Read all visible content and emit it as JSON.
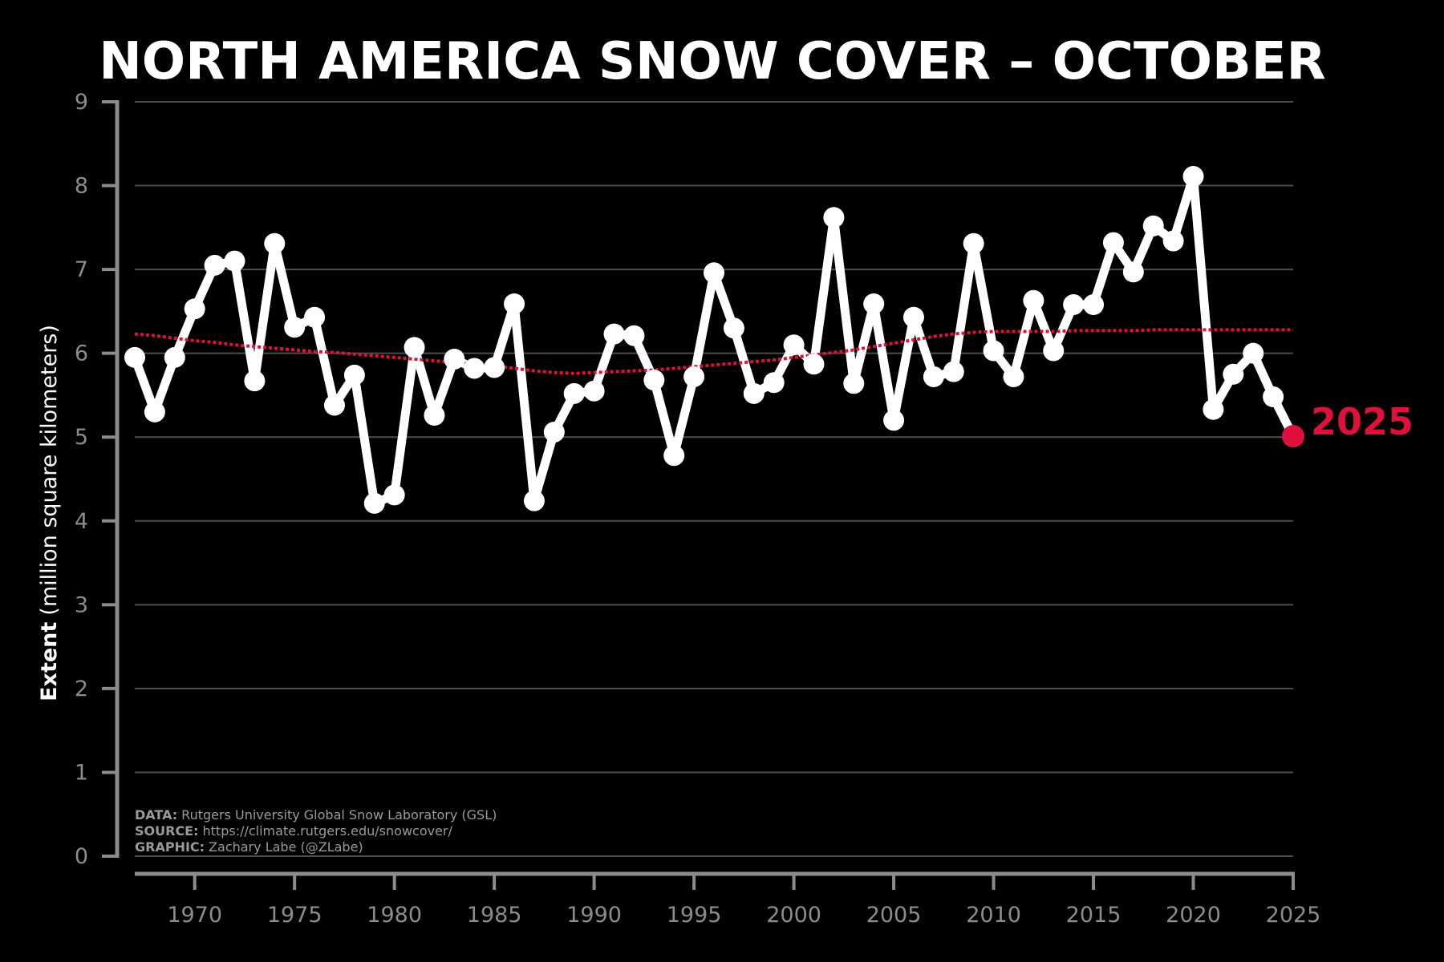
{
  "chart_data": {
    "type": "line",
    "title": "NORTH AMERICA SNOW COVER – OCTOBER",
    "ylabel_bold": "Extent",
    "ylabel_rest": "(million square kilometers)",
    "xlabel": "",
    "xlim": [
      1967,
      2025
    ],
    "ylim": [
      0,
      9
    ],
    "yticks": [
      0,
      1,
      2,
      3,
      4,
      5,
      6,
      7,
      8,
      9
    ],
    "xticks": [
      1970,
      1975,
      1980,
      1985,
      1990,
      1995,
      2000,
      2005,
      2010,
      2015,
      2020,
      2025
    ],
    "grid": true,
    "x": [
      1967,
      1968,
      1969,
      1970,
      1971,
      1972,
      1973,
      1974,
      1975,
      1976,
      1977,
      1978,
      1979,
      1980,
      1981,
      1982,
      1983,
      1984,
      1985,
      1986,
      1987,
      1988,
      1989,
      1990,
      1991,
      1992,
      1993,
      1994,
      1995,
      1996,
      1997,
      1998,
      1999,
      2000,
      2001,
      2002,
      2003,
      2004,
      2005,
      2006,
      2007,
      2008,
      2009,
      2010,
      2011,
      2012,
      2013,
      2014,
      2015,
      2016,
      2017,
      2018,
      2019,
      2020,
      2021,
      2022,
      2023,
      2024,
      2025
    ],
    "series": [
      {
        "values": [
          5.95,
          5.3,
          5.95,
          6.53,
          7.05,
          7.1,
          5.67,
          7.31,
          6.31,
          6.43,
          5.38,
          5.74,
          4.21,
          4.31,
          6.07,
          5.26,
          5.93,
          5.82,
          5.83,
          6.59,
          4.24,
          5.06,
          5.52,
          5.55,
          6.23,
          6.21,
          5.68,
          4.78,
          5.72,
          6.96,
          6.3,
          5.52,
          5.65,
          6.1,
          5.87,
          7.62,
          5.64,
          6.59,
          5.2,
          6.43,
          5.72,
          5.78,
          7.31,
          6.03,
          5.72,
          6.63,
          6.03,
          6.58,
          6.58,
          7.32,
          6.97,
          7.52,
          7.34,
          8.11,
          5.33,
          5.75,
          6.0,
          5.48,
          5.01
        ],
        "color": "#ffffff"
      },
      {
        "style": "dotted-trend",
        "values": [
          6.23,
          6.21,
          6.18,
          6.15,
          6.13,
          6.1,
          6.08,
          6.06,
          6.04,
          6.02,
          6.01,
          5.99,
          5.97,
          5.95,
          5.93,
          5.91,
          5.89,
          5.87,
          5.85,
          5.82,
          5.79,
          5.77,
          5.76,
          5.77,
          5.78,
          5.79,
          5.8,
          5.82,
          5.84,
          5.86,
          5.88,
          5.9,
          5.92,
          5.95,
          5.98,
          6.01,
          6.04,
          6.08,
          6.12,
          6.16,
          6.2,
          6.23,
          6.25,
          6.26,
          6.26,
          6.26,
          6.26,
          6.27,
          6.27,
          6.27,
          6.27,
          6.28,
          6.28,
          6.28,
          6.28,
          6.28,
          6.28,
          6.28,
          6.28
        ],
        "color": "#e0103c"
      }
    ],
    "highlight": {
      "label": "2025",
      "x": 2025,
      "y": 5.01,
      "color": "#e0103c"
    },
    "credits": [
      {
        "key": "DATA:",
        "value": "Rutgers University Global Snow Laboratory (GSL)"
      },
      {
        "key": "SOURCE:",
        "value": "https://climate.rutgers.edu/snowcover/"
      },
      {
        "key": "GRAPHIC:",
        "value": "Zachary Labe (@ZLabe)"
      }
    ],
    "colors": {
      "background": "#000000",
      "grid": "#4d4d4d",
      "axis": "#8c8c8c",
      "line": "#ffffff",
      "trend": "#e0103c"
    }
  }
}
